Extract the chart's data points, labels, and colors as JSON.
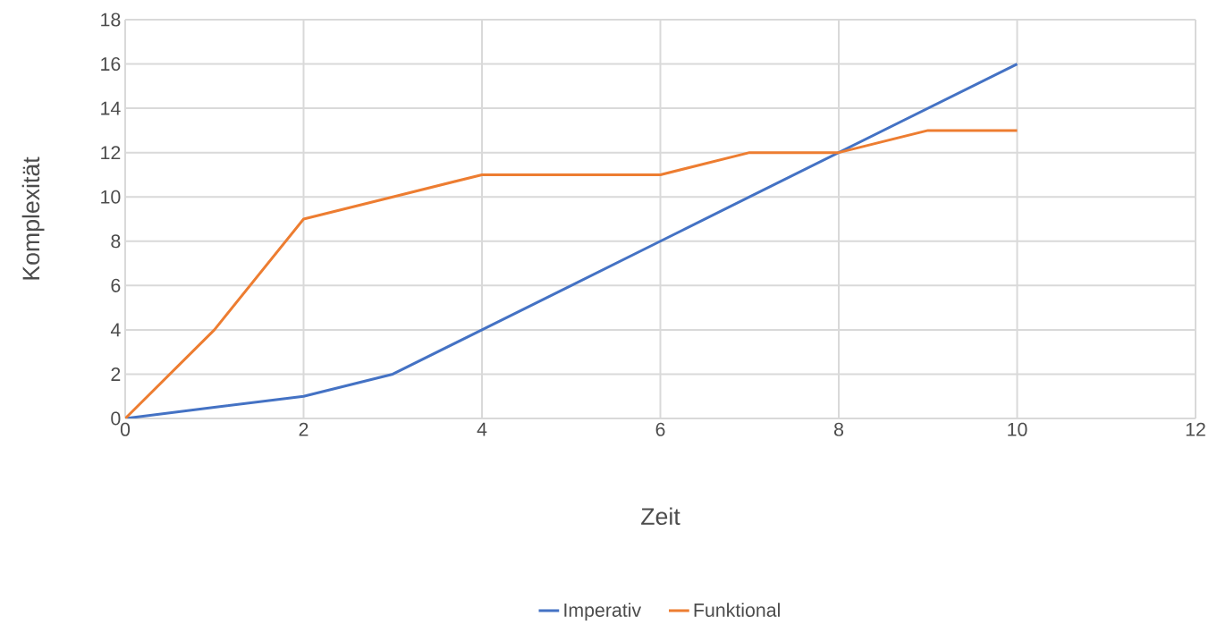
{
  "chart_data": {
    "type": "line",
    "xlabel": "Zeit",
    "ylabel": "Komplexität",
    "x": [
      0,
      1,
      2,
      3,
      4,
      5,
      6,
      7,
      8,
      9,
      10
    ],
    "series": [
      {
        "name": "Imperativ",
        "color": "#4472c4",
        "values": [
          0,
          0.5,
          1,
          2,
          4,
          6,
          8,
          10,
          12,
          14,
          16
        ]
      },
      {
        "name": "Funktional",
        "color": "#ed7d31",
        "values": [
          0,
          4,
          9,
          10,
          11,
          11,
          11,
          12,
          12,
          13,
          13
        ]
      }
    ],
    "xlim": [
      0,
      12
    ],
    "xticks": [
      0,
      2,
      4,
      6,
      8,
      10,
      12
    ],
    "ylim": [
      0,
      18
    ],
    "yticks": [
      0,
      2,
      4,
      6,
      8,
      10,
      12,
      14,
      16,
      18
    ],
    "grid": true,
    "legend": "bottom",
    "marker": "none",
    "line_style": "solid"
  }
}
